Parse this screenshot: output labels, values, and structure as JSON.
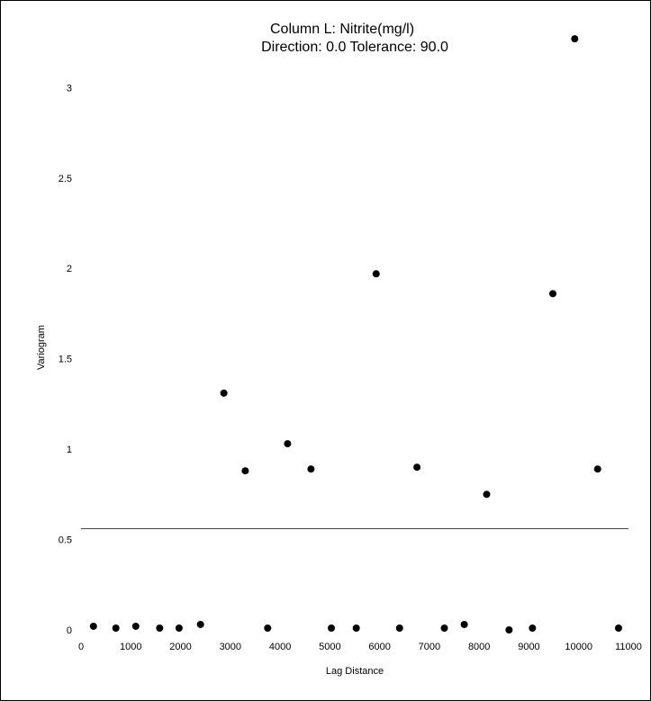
{
  "chart_data": {
    "type": "scatter",
    "title": "Column L:  Nitrite(mg/l)",
    "subtitle": "Direction: 0.0   Tolerance: 90.0",
    "xlabel": "Lag Distance",
    "ylabel": "Variogram",
    "xlim": [
      0,
      11000
    ],
    "ylim": [
      0,
      3.4
    ],
    "xticks": [
      "0",
      "1000",
      "2000",
      "3000",
      "4000",
      "5000",
      "6000",
      "7000",
      "8000",
      "9000",
      "10000",
      "11000"
    ],
    "yticks": [
      "0",
      "0.5",
      "1",
      "1.5",
      "2",
      "2.5",
      "3"
    ],
    "points": [
      {
        "x": 250,
        "y": 0.02
      },
      {
        "x": 700,
        "y": 0.01
      },
      {
        "x": 1100,
        "y": 0.02
      },
      {
        "x": 1580,
        "y": 0.01
      },
      {
        "x": 1970,
        "y": 0.01
      },
      {
        "x": 2400,
        "y": 0.03
      },
      {
        "x": 2870,
        "y": 1.31
      },
      {
        "x": 3300,
        "y": 0.88
      },
      {
        "x": 3750,
        "y": 0.01
      },
      {
        "x": 4150,
        "y": 1.03
      },
      {
        "x": 4620,
        "y": 0.89
      },
      {
        "x": 5030,
        "y": 0.01
      },
      {
        "x": 5530,
        "y": 0.01
      },
      {
        "x": 5930,
        "y": 1.97
      },
      {
        "x": 6400,
        "y": 0.01
      },
      {
        "x": 6750,
        "y": 0.9
      },
      {
        "x": 7300,
        "y": 0.01
      },
      {
        "x": 7700,
        "y": 0.03
      },
      {
        "x": 8150,
        "y": 0.75
      },
      {
        "x": 8600,
        "y": 0.0
      },
      {
        "x": 9070,
        "y": 0.01
      },
      {
        "x": 9480,
        "y": 1.86
      },
      {
        "x": 9920,
        "y": 3.27
      },
      {
        "x": 10380,
        "y": 0.89
      },
      {
        "x": 10800,
        "y": 0.01
      }
    ],
    "reference_line": {
      "y": 0.56,
      "color": "#3333cc"
    },
    "point_color": "#000000",
    "grid": false
  }
}
